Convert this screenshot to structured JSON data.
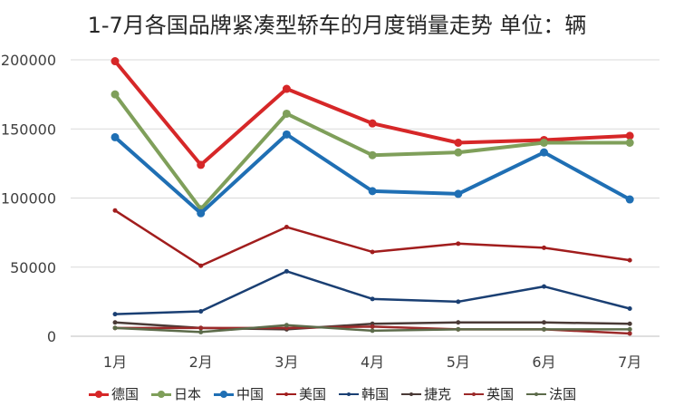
{
  "chart_data": {
    "type": "line",
    "title": "1-7月各国品牌紧凑型轿车的月度销量走势  单位：辆",
    "categories": [
      "1月",
      "2月",
      "3月",
      "4月",
      "5月",
      "6月",
      "7月"
    ],
    "ylim": [
      0,
      200000
    ],
    "yticks": [
      "0",
      "50000",
      "100000",
      "150000",
      "200000"
    ],
    "grid": true,
    "legend_position": "bottom",
    "series": [
      {
        "name": "德国",
        "color": "#d62728",
        "thick": true,
        "values": [
          199000,
          124000,
          179000,
          154000,
          140000,
          142000,
          145000
        ]
      },
      {
        "name": "日本",
        "color": "#7f9f5a",
        "thick": true,
        "values": [
          175000,
          92000,
          161000,
          131000,
          133000,
          140000,
          140000
        ]
      },
      {
        "name": "中国",
        "color": "#1f6fb4",
        "thick": true,
        "values": [
          144000,
          89000,
          146000,
          105000,
          103000,
          133000,
          99000
        ]
      },
      {
        "name": "美国",
        "color": "#a11d1d",
        "thick": false,
        "values": [
          91000,
          51000,
          79000,
          61000,
          67000,
          64000,
          55000
        ]
      },
      {
        "name": "韩国",
        "color": "#1a3f73",
        "thick": false,
        "values": [
          16000,
          18000,
          47000,
          27000,
          25000,
          36000,
          20000
        ]
      },
      {
        "name": "捷克",
        "color": "#4a3a36",
        "thick": false,
        "values": [
          10000,
          6000,
          5000,
          9000,
          10000,
          10000,
          9000
        ]
      },
      {
        "name": "英国",
        "color": "#9c2a2a",
        "thick": false,
        "values": [
          6000,
          6000,
          6000,
          7000,
          5000,
          5000,
          2000
        ]
      },
      {
        "name": "法国",
        "color": "#5c6b4a",
        "thick": false,
        "values": [
          6000,
          3000,
          8000,
          4000,
          5000,
          5000,
          5000
        ]
      }
    ]
  }
}
